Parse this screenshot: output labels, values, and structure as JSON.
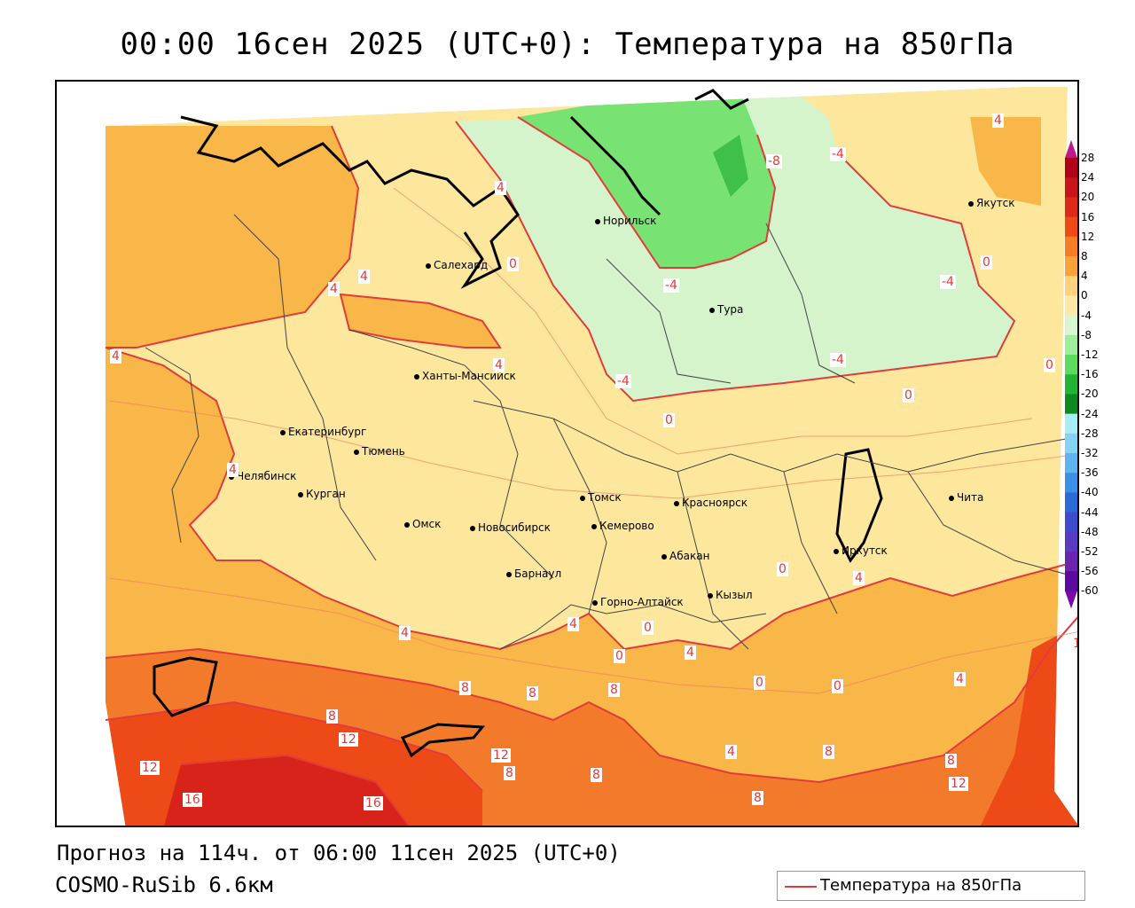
{
  "title": "00:00 16сен 2025 (UTC+0): Температура на 850гПа",
  "footer": {
    "forecast": "Прогноз на 114ч. от 06:00 11сен 2025 (UTC+0)",
    "model": "COSMO-RuSib 6.6км"
  },
  "legend": {
    "label": "Температура на 850гПа",
    "color": "#e23b3b"
  },
  "colorbar": {
    "labels": [
      "28",
      "24",
      "20",
      "16",
      "12",
      "8",
      "4",
      "0",
      "-4",
      "-8",
      "-12",
      "-16",
      "-20",
      "-24",
      "-28",
      "-32",
      "-36",
      "-40",
      "-44",
      "-48",
      "-52",
      "-56",
      "-60"
    ],
    "colors": [
      "#b0001a",
      "#c8141a",
      "#e02818",
      "#ee4a18",
      "#f47d26",
      "#f8a23a",
      "#fcd27c",
      "#fde8a8",
      "#d8f6d0",
      "#9cee9a",
      "#5bdc5e",
      "#22b434",
      "#0c8a20",
      "#a8ecf6",
      "#86d2f2",
      "#5eb4ee",
      "#3c90e6",
      "#2c6ad8",
      "#3c4ccc",
      "#5a3ac0",
      "#6a24b0",
      "#5c0aa0"
    ]
  },
  "cities": [
    {
      "name": "Норильск"
    },
    {
      "name": "Якутск"
    },
    {
      "name": "Салехард"
    },
    {
      "name": "Тура"
    },
    {
      "name": "Ханты-Мансийск"
    },
    {
      "name": "Екатеринбург"
    },
    {
      "name": "Тюмень"
    },
    {
      "name": "Челябинск"
    },
    {
      "name": "Курган"
    },
    {
      "name": "Омск"
    },
    {
      "name": "Новосибирск"
    },
    {
      "name": "Томск"
    },
    {
      "name": "Кемерово"
    },
    {
      "name": "Красноярск"
    },
    {
      "name": "Абакан"
    },
    {
      "name": "Барнаул"
    },
    {
      "name": "Горно-Алтайск"
    },
    {
      "name": "Кызыл"
    },
    {
      "name": "Иркутск"
    },
    {
      "name": "Чита"
    }
  ],
  "contour_labels": [
    "4",
    "-8",
    "-4",
    "-4",
    "-4",
    "-4",
    "0",
    "0",
    "4",
    "4",
    "4",
    "4",
    "4",
    "4",
    "-4",
    "0",
    "0",
    "0",
    "0",
    "4",
    "0",
    "4",
    "0",
    "4",
    "4",
    "0",
    "0",
    "4",
    "8",
    "8",
    "8",
    "8",
    "12",
    "12",
    "12",
    "8",
    "8",
    "4",
    "8",
    "8",
    "8",
    "12",
    "16",
    "16",
    "1"
  ]
}
